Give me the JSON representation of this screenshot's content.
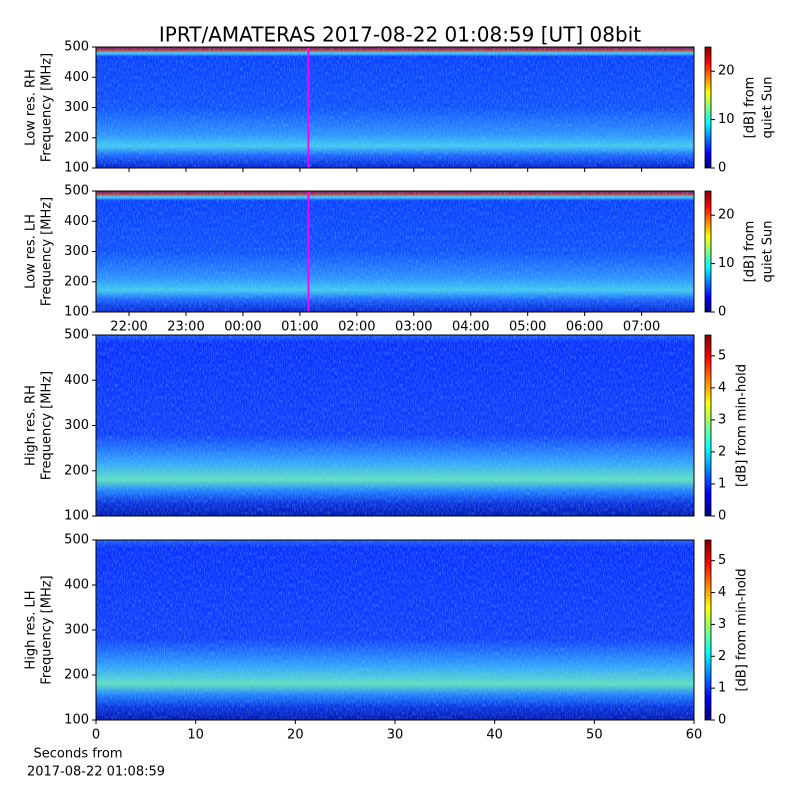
{
  "title": "IPRT/AMATERAS 2017-08-22 01:08:59 [UT]   08bit",
  "chart_data": [
    {
      "type": "heatmap",
      "ylabel": [
        "Low res. RH",
        "Frequency [MHz]"
      ],
      "xlim": [
        21.42,
        31.92
      ],
      "ylim": [
        100,
        500
      ],
      "yticks": [
        100,
        200,
        300,
        400,
        500
      ],
      "marker_x": 25.15,
      "marker_color": "#ff00ff",
      "colormap": "jet",
      "clim": [
        0,
        25
      ],
      "cticks": [
        0,
        10,
        20
      ],
      "clabel": [
        "[dB] from",
        "quiet Sun"
      ]
    },
    {
      "type": "heatmap",
      "ylabel": [
        "Low res. LH",
        "Frequency [MHz]"
      ],
      "xlim": [
        21.42,
        31.92
      ],
      "ylim": [
        100,
        500
      ],
      "yticks": [
        100,
        200,
        300,
        400,
        500
      ],
      "xticks": [
        {
          "value": 22,
          "label": "22:00"
        },
        {
          "value": 23,
          "label": "23:00"
        },
        {
          "value": 24,
          "label": "00:00"
        },
        {
          "value": 25,
          "label": "01:00"
        },
        {
          "value": 26,
          "label": "02:00"
        },
        {
          "value": 27,
          "label": "03:00"
        },
        {
          "value": 28,
          "label": "04:00"
        },
        {
          "value": 29,
          "label": "05:00"
        },
        {
          "value": 30,
          "label": "06:00"
        },
        {
          "value": 31,
          "label": "07:00"
        }
      ],
      "marker_x": 25.15,
      "marker_color": "#ff00ff",
      "colormap": "jet",
      "clim": [
        0,
        25
      ],
      "cticks": [
        0,
        10,
        20
      ],
      "clabel": [
        "[dB] from",
        "quiet Sun"
      ]
    },
    {
      "type": "heatmap",
      "ylabel": [
        "High res. RH",
        "Frequency [MHz]"
      ],
      "xlim": [
        0,
        60
      ],
      "ylim": [
        100,
        500
      ],
      "yticks": [
        100,
        200,
        300,
        400,
        500
      ],
      "colormap": "jet",
      "clim": [
        0,
        5.65
      ],
      "cticks": [
        0,
        1,
        2,
        3,
        4,
        5
      ],
      "clabel": [
        "[dB] from min-hold"
      ]
    },
    {
      "type": "heatmap",
      "ylabel": [
        "High res. LH",
        "Frequency [MHz]"
      ],
      "xlim": [
        0,
        60
      ],
      "ylim": [
        100,
        500
      ],
      "yticks": [
        100,
        200,
        300,
        400,
        500
      ],
      "xticks": [
        0,
        10,
        20,
        30,
        40,
        50,
        60
      ],
      "xlabel": [
        "Seconds from",
        "2017-08-22 01:08:59"
      ],
      "colormap": "jet",
      "clim": [
        0,
        5.65
      ],
      "cticks": [
        0,
        1,
        2,
        3,
        4,
        5
      ],
      "clabel": [
        "[dB] from min-hold"
      ]
    }
  ]
}
